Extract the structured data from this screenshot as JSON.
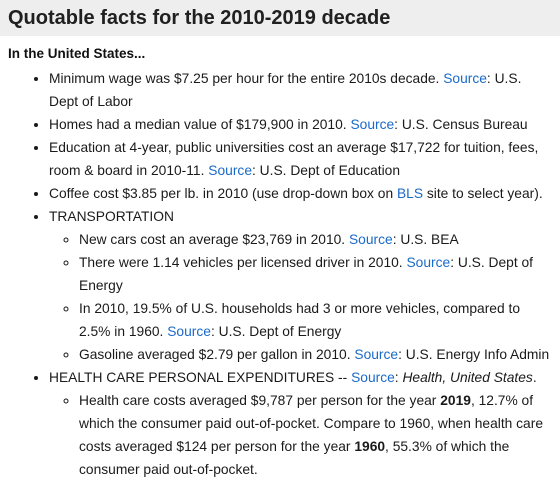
{
  "title": "Quotable facts for the 2010-2019 decade",
  "subtitle": "In the United States...",
  "source_link": "Source",
  "items": {
    "min_wage": {
      "pre": "Minimum wage was $7.25 per hour for the entire 2010s decade. ",
      "post": ": U.S. Dept of Labor"
    },
    "homes": {
      "pre": "Homes had a median value of $179,900 in 2010. ",
      "post": ": U.S. Census Bureau"
    },
    "education": {
      "pre": "Education at 4-year, public universities cost an average $17,722 for tuition, fees, room & board in 2010-11. ",
      "post": ": U.S. Dept of Education"
    },
    "coffee": {
      "pre": "Coffee cost $3.85 per lb. in 2010 (use drop-down box on ",
      "link": "BLS",
      "post": " site to select year)."
    },
    "transportation": {
      "label": "TRANSPORTATION",
      "cars": {
        "pre": "New cars cost an average $23,769 in 2010. ",
        "post": ": U.S. BEA"
      },
      "vehicles": {
        "pre": "There were 1.14 vehicles per licensed driver in 2010. ",
        "post": ": U.S. Dept of Energy"
      },
      "households": {
        "pre": "In 2010, 19.5% of U.S. households had 3 or more vehicles, compared to 2.5% in 1960. ",
        "post": ": U.S. Dept of Energy"
      },
      "gasoline": {
        "pre": "Gasoline averaged $2.79 per gallon in 2010. ",
        "post": ": U.S. Energy Info Admin"
      }
    },
    "health": {
      "label": "HEALTH CARE PERSONAL EXPENDITURES -- ",
      "post": ": ",
      "pub": "Health, United States",
      "end": ".",
      "costs": {
        "p1": "Health care costs averaged $9,787 per person for the year ",
        "y1": "2019",
        "p2": ", 12.7% of which the consumer paid out-of-pocket. Compare to 1960, when health care costs averaged $124 per person for the year ",
        "y2": "1960",
        "p3": ", 55.3% of which the consumer paid out-of-pocket."
      }
    }
  }
}
